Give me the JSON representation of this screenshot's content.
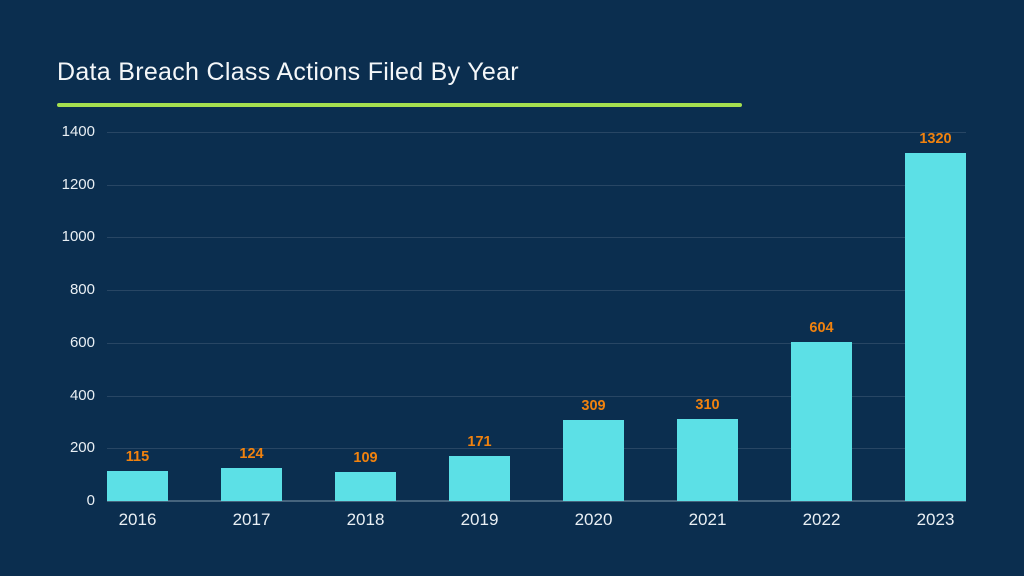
{
  "page": {
    "background_color": "#0B2E4F"
  },
  "header": {
    "title": "Data Breach Class Actions Filed By Year",
    "underline_color": "#A5DF4F"
  },
  "chart_data": {
    "type": "bar",
    "title": "Data Breach Class Actions Filed By Year",
    "categories": [
      "2016",
      "2017",
      "2018",
      "2019",
      "2020",
      "2021",
      "2022",
      "2023"
    ],
    "values": [
      115,
      124,
      109,
      171,
      309,
      310,
      604,
      1320
    ],
    "xlabel": "",
    "ylabel": "",
    "ylim": [
      0,
      1400
    ],
    "yticks": [
      0,
      200,
      400,
      600,
      800,
      1000,
      1200,
      1400
    ],
    "grid": "horizontal-only",
    "legend_position": "none",
    "value_labels_shown": true,
    "colors": {
      "bar": "#5CE0E6",
      "value_label": "#F1820E",
      "axis_text": "#E9EFF4",
      "title_text": "#F4F7F9",
      "gridline": "#284664",
      "baseline": "#46647D",
      "accent_underline": "#A5DF4F",
      "background": "#0B2E4F"
    }
  }
}
